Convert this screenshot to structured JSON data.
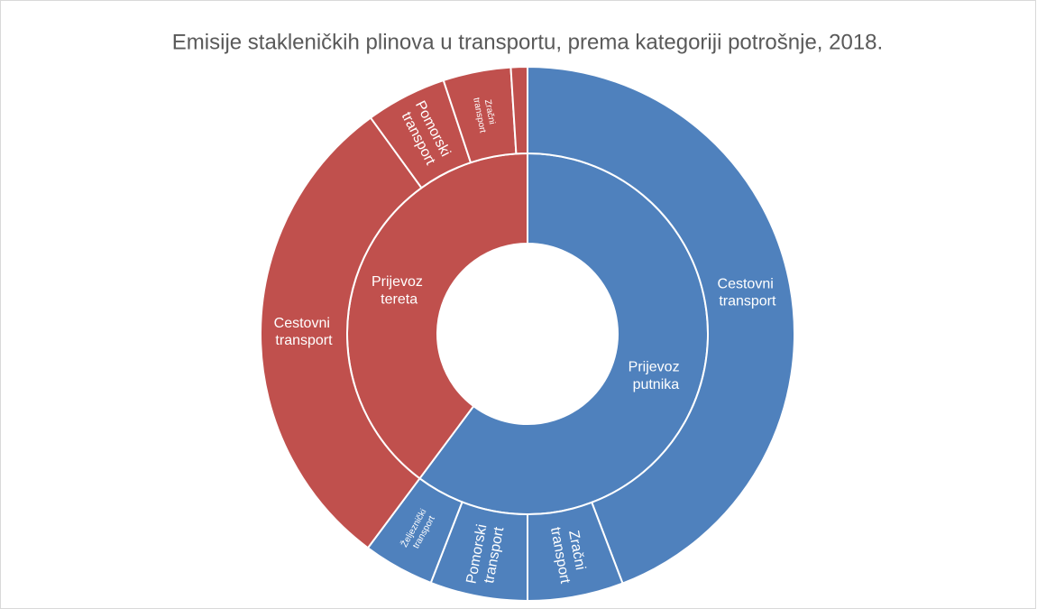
{
  "chart_data": {
    "type": "sunburst",
    "title": "Emisije stakleničkih plinova u transportu, prema kategoriji potrošnje, 2018.",
    "series": [
      {
        "name": "Prijevoz putnika",
        "color": "#4f81bd",
        "value": 60.2,
        "categories": [
          "Cestovni transport",
          "Zračni transport",
          "Pomorski transport",
          "Željeznički transport"
        ],
        "values": [
          44.2,
          5.8,
          5.9,
          4.3
        ]
      },
      {
        "name": "Prijevoz tereta",
        "color": "#c0504d",
        "value": 39.8,
        "categories": [
          "Cestovni transport",
          "Pomorski transport",
          "Zračni transport",
          null
        ],
        "values": [
          29.8,
          4.9,
          4.1,
          1.0
        ]
      }
    ]
  }
}
